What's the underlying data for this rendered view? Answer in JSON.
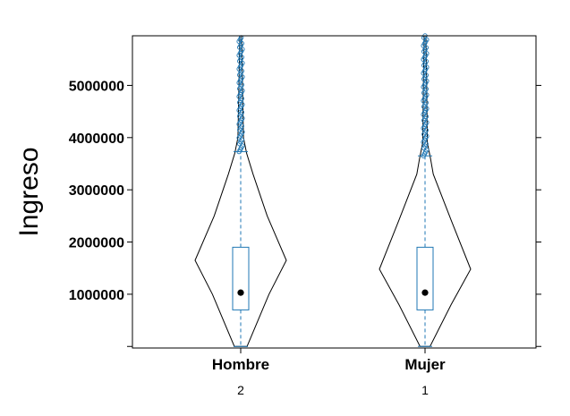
{
  "chart_data": {
    "type": "violin-box",
    "ylabel": "Ingreso",
    "ylim": [
      -30000,
      5950000
    ],
    "yticks": [
      1000000,
      2000000,
      3000000,
      4000000,
      5000000
    ],
    "ytick_labels": [
      "1000000",
      "2000000",
      "3000000",
      "4000000",
      "5000000"
    ],
    "extra_ticks": [
      0
    ],
    "colors": {
      "box": "#1f77b4",
      "violin": "#000000",
      "median": "#000000",
      "frame": "#000000"
    },
    "groups": [
      {
        "name": "Hombre",
        "count_label": "2",
        "whisker_low": 0,
        "q1": 700000,
        "median": 1030000,
        "q3": 1900000,
        "whisker_high": 3730000,
        "violin": [
          [
            0,
            0.14
          ],
          [
            1000000,
            0.62
          ],
          [
            1650000,
            1.0
          ],
          [
            2500000,
            0.58
          ],
          [
            3300000,
            0.27
          ],
          [
            3700000,
            0.13
          ],
          [
            4000000,
            0.06
          ],
          [
            5000000,
            0.04
          ],
          [
            5950000,
            0.02
          ]
        ],
        "outliers_from": 3730000,
        "outliers_to": 5950000
      },
      {
        "name": "Mujer",
        "count_label": "1",
        "whisker_low": 0,
        "q1": 700000,
        "median": 1030000,
        "q3": 1900000,
        "whisker_high": 3650000,
        "violin": [
          [
            0,
            0.11
          ],
          [
            800000,
            0.57
          ],
          [
            1480000,
            1.0
          ],
          [
            2400000,
            0.58
          ],
          [
            3300000,
            0.18
          ],
          [
            3600000,
            0.12
          ],
          [
            3900000,
            0.05
          ],
          [
            5000000,
            0.035
          ],
          [
            5950000,
            0.02
          ]
        ],
        "outliers_from": 3650000,
        "outliers_to": 5950000
      }
    ]
  }
}
